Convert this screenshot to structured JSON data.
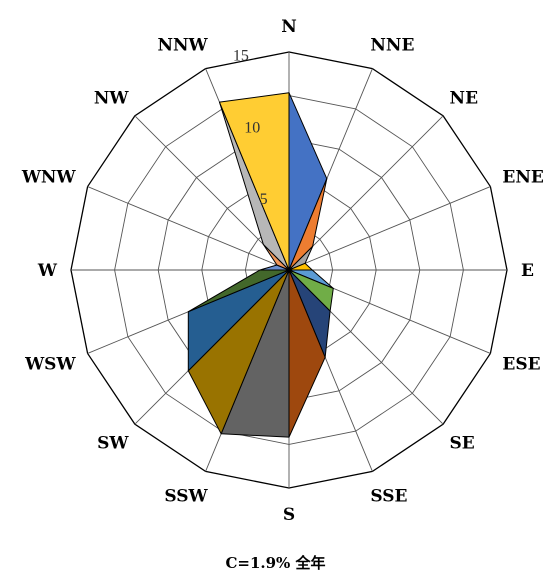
{
  "chart_data": {
    "type": "radar",
    "directions": [
      "N",
      "NNE",
      "NE",
      "ENE",
      "E",
      "ESE",
      "SE",
      "SSE",
      "S",
      "SSW",
      "SW",
      "WSW",
      "W",
      "WNW",
      "NW",
      "NNW"
    ],
    "values": [
      12.2,
      6.8,
      2.3,
      1.2,
      1.6,
      3.3,
      4.0,
      6.5,
      11.5,
      12.2,
      9.8,
      7.5,
      2.0,
      0.9,
      2.5,
      12.5
    ],
    "sector_colors": [
      "#4472C4",
      "#ED7D31",
      "#A5A5A5",
      "#FFC000",
      "#5B9BD5",
      "#70AD47",
      "#264478",
      "#9E480E",
      "#636363",
      "#997300",
      "#255E91",
      "#43682B",
      "#698ED0",
      "#F1975A",
      "#B7B7B7",
      "#FFCD33"
    ],
    "r_ticks": [
      "5",
      "10",
      "15"
    ],
    "r_max": 15,
    "grid": true,
    "caption": "C=1.9% 全年"
  }
}
